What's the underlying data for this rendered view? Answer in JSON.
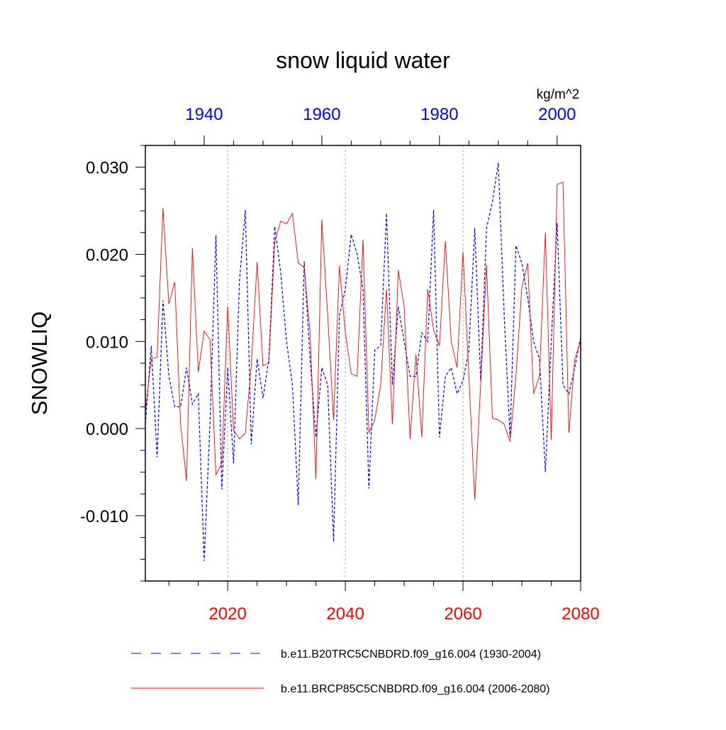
{
  "chart_data": {
    "type": "line",
    "title": "snow liquid water",
    "units": "kg/m^2",
    "ylabel": "SNOWLIQ",
    "ylim": [
      -0.0175,
      0.0325
    ],
    "yticks": [
      -0.01,
      0.0,
      0.01,
      0.02,
      0.03
    ],
    "ytick_labels": [
      "-0.010",
      "0.000",
      "0.010",
      "0.020",
      "0.030"
    ],
    "x_bottom": {
      "range": [
        2006,
        2080
      ],
      "ticks": [
        2020,
        2040,
        2060,
        2080
      ],
      "tick_labels": [
        "2020",
        "2040",
        "2060",
        "2080"
      ],
      "color": "#ff0000"
    },
    "x_top": {
      "range": [
        1930,
        2004
      ],
      "ticks": [
        1940,
        1960,
        1980,
        2000
      ],
      "tick_labels": [
        "1940",
        "1960",
        "1980",
        "2000"
      ],
      "color": "#0000ff"
    },
    "grid": "vertical dotted lines at 2020, 2040, 2060",
    "legend_position": "bottom",
    "series": [
      {
        "name": "b.e11.B20TRC5CNBDRD.f09_g16.004 (1930-2004)",
        "axis": "top",
        "color": "#0000ff",
        "style": "dashed",
        "x_start": 1930,
        "values": [
          0.0005,
          0.0095,
          -0.0033,
          0.0147,
          0.006,
          0.0025,
          0.0025,
          0.007,
          0.0028,
          0.004,
          -0.0152,
          0.0008,
          0.0222,
          -0.007,
          0.007,
          -0.004,
          0.017,
          0.0251,
          -0.0018,
          0.008,
          0.0035,
          0.008,
          0.0232,
          0.018,
          0.01,
          0.005,
          -0.0088,
          0.0192,
          0.008,
          -0.001,
          0.007,
          0.005,
          -0.013,
          0.013,
          0.016,
          0.0223,
          0.02,
          0.016,
          -0.0069,
          0.009,
          0.0095,
          0.0247,
          0.005,
          0.014,
          0.01,
          0.006,
          0.006,
          0.011,
          0.01,
          0.0251,
          -0.001,
          0.006,
          0.007,
          0.004,
          0.0055,
          0.009,
          0.023,
          0.0055,
          0.023,
          0.026,
          0.0305,
          0.013,
          -0.001,
          0.021,
          0.019,
          0.015,
          0.01,
          0.008,
          -0.005,
          0.01,
          0.0236,
          0.005,
          0.004,
          0.007,
          0.0105
        ]
      },
      {
        "name": "b.e11.BRCP85C5CNBDRD.f09_g16.004 (2006-2080)",
        "axis": "bottom",
        "color": "#ff0000",
        "style": "solid",
        "x_start": 2006,
        "values": [
          0.002,
          0.008,
          0.0082,
          0.0253,
          0.0143,
          0.0168,
          0.0005,
          -0.006,
          0.0207,
          0.0065,
          0.0112,
          0.0102,
          -0.0053,
          -0.004,
          0.014,
          -0.0002,
          -0.0012,
          -0.0005,
          0.0072,
          0.0191,
          0.0072,
          0.0075,
          0.0215,
          0.0238,
          0.0235,
          0.0247,
          0.019,
          0.0185,
          0.011,
          -0.0058,
          0.024,
          0.013,
          0.001,
          0.0187,
          0.011,
          0.0063,
          0.006,
          0.0217,
          -0.0005,
          0.001,
          0.005,
          0.016,
          0.0005,
          0.0182,
          0.014,
          -0.0012,
          0.0085,
          -0.001,
          0.016,
          0.0113,
          0.0095,
          0.0215,
          0.01,
          0.007,
          0.0203,
          0.006,
          -0.0082,
          0.005,
          0.0188,
          0.0012,
          0.001,
          0.0005,
          -0.0015,
          0.006,
          0.0162,
          0.019,
          0.004,
          0.006,
          0.0225,
          -0.0013,
          0.028,
          0.0283,
          -0.0005,
          0.008,
          0.01
        ]
      }
    ]
  }
}
